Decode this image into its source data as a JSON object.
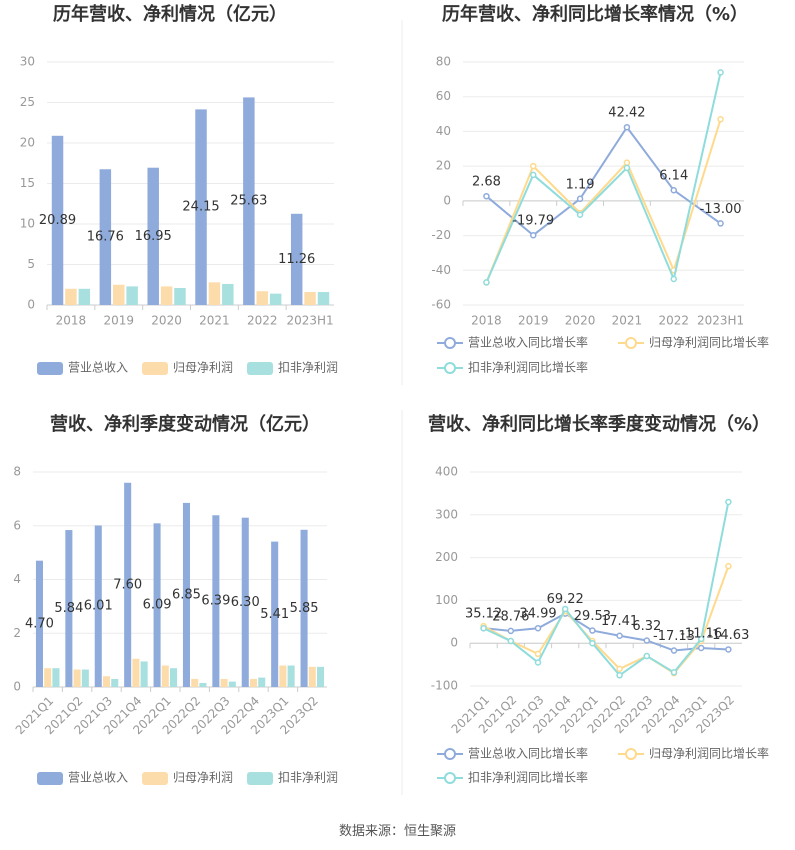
{
  "chart_data": [
    {
      "type": "bar",
      "title": "历年营收、净利情况（亿元）",
      "categories": [
        "2018",
        "2019",
        "2020",
        "2021",
        "2022",
        "2023H1"
      ],
      "series": [
        {
          "name": "营业总收入",
          "color": "#8fabdc",
          "data_labels": true,
          "values": [
            20.89,
            16.76,
            16.95,
            24.15,
            25.63,
            11.26
          ]
        },
        {
          "name": "归母净利润",
          "color": "#fddcab",
          "values": [
            2.0,
            2.5,
            2.3,
            2.8,
            1.7,
            1.6
          ]
        },
        {
          "name": "扣非净利润",
          "color": "#a8e0e0",
          "values": [
            2.0,
            2.3,
            2.1,
            2.6,
            1.4,
            1.6
          ]
        }
      ],
      "ylim": [
        0,
        30
      ],
      "yticks": [
        0,
        5,
        10,
        15,
        20,
        25,
        30
      ],
      "grid": true,
      "legend": "bottom"
    },
    {
      "type": "line",
      "title": "历年营收、净利同比增长率情况（%）",
      "categories": [
        "2018",
        "2019",
        "2020",
        "2021",
        "2022",
        "2023H1"
      ],
      "series": [
        {
          "name": "营业总收入同比增长率",
          "color": "#8fabdc",
          "data_labels": true,
          "values": [
            2.68,
            -19.79,
            1.19,
            42.42,
            6.14,
            -13.0
          ],
          "value_labels": [
            "2.68",
            "-19.79",
            "1.19",
            "42.42",
            "6.14",
            "-13.00"
          ]
        },
        {
          "name": "归母净利润同比增长率",
          "color": "#ffd98c",
          "values": [
            -47,
            20,
            -7,
            22,
            -40,
            47
          ]
        },
        {
          "name": "扣非净利润同比增长率",
          "color": "#8fdcdc",
          "values": [
            -47,
            15,
            -8,
            19,
            -45,
            74
          ]
        }
      ],
      "ylim": [
        -60,
        80
      ],
      "yticks": [
        -60,
        -40,
        -20,
        0,
        20,
        40,
        60,
        80
      ],
      "grid": true,
      "legend": "bottom"
    },
    {
      "type": "bar",
      "title": "营收、净利季度变动情况（亿元）",
      "categories": [
        "2021Q1",
        "2021Q2",
        "2021Q3",
        "2021Q4",
        "2022Q1",
        "2022Q2",
        "2022Q3",
        "2022Q4",
        "2023Q1",
        "2023Q2"
      ],
      "series": [
        {
          "name": "营业总收入",
          "color": "#8fabdc",
          "data_labels": true,
          "values": [
            4.7,
            5.84,
            6.01,
            7.6,
            6.09,
            6.85,
            6.39,
            6.3,
            5.41,
            5.85
          ],
          "value_labels": [
            "4.70",
            "5.84",
            "6.01",
            "7.60",
            "6.09",
            "6.85",
            "6.39",
            "6.30",
            "5.41",
            "5.85"
          ]
        },
        {
          "name": "归母净利润",
          "color": "#fddcab",
          "values": [
            0.7,
            0.65,
            0.4,
            1.05,
            0.8,
            0.3,
            0.3,
            0.3,
            0.8,
            0.75
          ]
        },
        {
          "name": "扣非净利润",
          "color": "#a8e0e0",
          "values": [
            0.7,
            0.65,
            0.3,
            0.95,
            0.7,
            0.15,
            0.2,
            0.35,
            0.8,
            0.75
          ]
        }
      ],
      "ylim": [
        0,
        8
      ],
      "yticks": [
        0,
        2,
        4,
        6,
        8
      ],
      "grid": true,
      "legend": "bottom"
    },
    {
      "type": "line",
      "title": "营收、净利同比增长率季度变动情况（%）",
      "categories": [
        "2021Q1",
        "2021Q2",
        "2021Q3",
        "2021Q4",
        "2022Q1",
        "2022Q2",
        "2022Q3",
        "2022Q4",
        "2023Q1",
        "2023Q2"
      ],
      "series": [
        {
          "name": "营业总收入同比增长率",
          "color": "#8fabdc",
          "data_labels": true,
          "values": [
            35.12,
            28.76,
            34.99,
            69.22,
            29.53,
            17.41,
            6.32,
            -17.13,
            -11.16,
            -14.63
          ]
        },
        {
          "name": "归母净利润同比增长率",
          "color": "#ffd98c",
          "values": [
            40,
            5,
            -25,
            75,
            5,
            -60,
            -30,
            -70,
            5,
            180
          ]
        },
        {
          "name": "扣非净利润同比增长率",
          "color": "#8fdcdc",
          "values": [
            35,
            5,
            -45,
            80,
            0,
            -75,
            -30,
            -68,
            10,
            330
          ]
        }
      ],
      "ylim": [
        -100,
        400
      ],
      "yticks": [
        -100,
        0,
        100,
        200,
        300,
        400
      ],
      "grid": true,
      "legend": "bottom"
    }
  ],
  "footer": "数据来源：恒生聚源"
}
